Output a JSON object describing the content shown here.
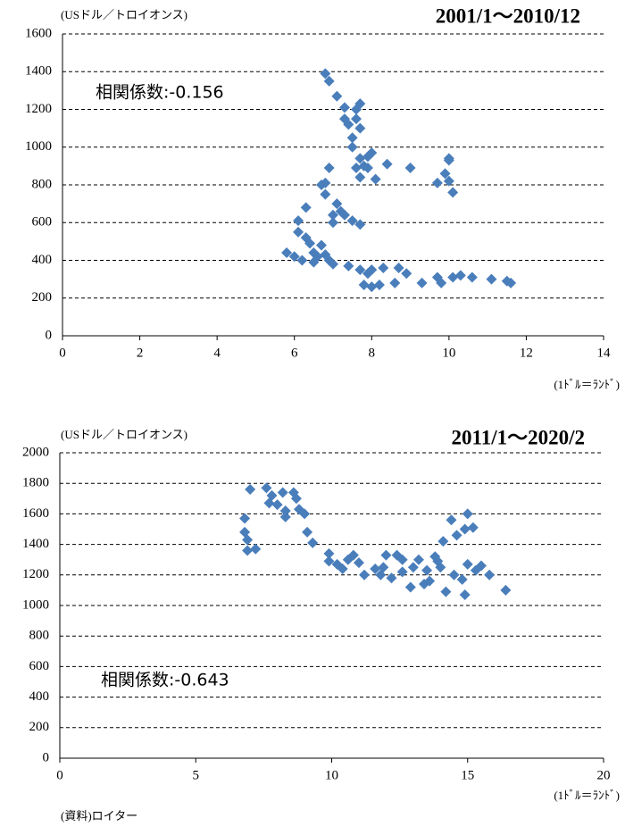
{
  "chart_data": [
    {
      "type": "scatter",
      "title": "2001/1〜2010/12",
      "y_label": "(USドル／トロイオンス)",
      "x_label": "(1ﾄﾞﾙ＝ﾗﾝﾄﾞ)",
      "annotation": "相関係数:-0.156",
      "color": "#4a7ebb",
      "grid": true,
      "xlim": [
        0,
        14
      ],
      "xticks": [
        0,
        2,
        4,
        6,
        8,
        10,
        12,
        14
      ],
      "ylim": [
        0,
        1600
      ],
      "yticks": [
        0,
        200,
        400,
        600,
        800,
        1000,
        1200,
        1400,
        1600
      ],
      "x": [
        6.8,
        6.9,
        7.1,
        7.3,
        7.3,
        7.4,
        7.5,
        7.6,
        7.7,
        7.6,
        7.7,
        7.5,
        7.7,
        7.6,
        7.7,
        7.8,
        7.9,
        8.0,
        7.9,
        8.1,
        8.4,
        9.0,
        9.7,
        9.9,
        10.0,
        10.0,
        10.0,
        10.1,
        6.9,
        6.7,
        6.8,
        6.8,
        7.0,
        7.1,
        7.2,
        7.3,
        7.0,
        7.5,
        7.7,
        6.3,
        6.1,
        6.1,
        6.3,
        6.4,
        6.5,
        6.7,
        6.8,
        6.6,
        6.9,
        7.0,
        5.8,
        6.0,
        6.2,
        6.5,
        7.4,
        7.7,
        7.9,
        8.0,
        7.8,
        8.0,
        8.2,
        8.3,
        8.7,
        8.9,
        9.3,
        9.7,
        9.8,
        10.1,
        10.3,
        10.6,
        11.1,
        11.5,
        11.6,
        8.6
      ],
      "values": [
        1390,
        1350,
        1270,
        1210,
        1150,
        1120,
        1050,
        1200,
        1230,
        1150,
        1100,
        1000,
        940,
        890,
        840,
        900,
        950,
        970,
        890,
        830,
        910,
        890,
        810,
        860,
        930,
        940,
        820,
        760,
        890,
        800,
        810,
        750,
        640,
        700,
        660,
        640,
        600,
        610,
        590,
        680,
        610,
        550,
        520,
        490,
        440,
        480,
        430,
        420,
        400,
        380,
        440,
        420,
        400,
        390,
        370,
        350,
        330,
        350,
        270,
        260,
        270,
        360,
        360,
        330,
        280,
        310,
        280,
        310,
        320,
        310,
        300,
        290,
        280,
        280
      ]
    },
    {
      "type": "scatter",
      "title": "2011/1〜2020/2",
      "y_label": "(USドル／トロイオンス)",
      "x_label": "(1ﾄﾞﾙ＝ﾗﾝﾄﾞ)",
      "annotation": "相関係数:-0.643",
      "color": "#4a7ebb",
      "grid": true,
      "xlim": [
        0,
        20
      ],
      "xticks": [
        0,
        5,
        10,
        15,
        20
      ],
      "ylim": [
        0,
        2000
      ],
      "yticks": [
        0,
        200,
        400,
        600,
        800,
        1000,
        1200,
        1400,
        1600,
        1800,
        2000
      ],
      "x": [
        6.8,
        6.8,
        6.9,
        6.9,
        7.2,
        7.0,
        7.6,
        7.8,
        7.7,
        8.0,
        8.2,
        8.3,
        8.3,
        8.6,
        8.7,
        8.8,
        9.0,
        9.1,
        9.3,
        9.9,
        9.9,
        10.2,
        10.4,
        10.6,
        10.8,
        11.0,
        11.2,
        11.6,
        11.8,
        12.0,
        12.2,
        12.4,
        12.6,
        12.9,
        13.0,
        13.2,
        13.5,
        13.6,
        13.8,
        14.0,
        14.1,
        14.2,
        14.4,
        14.6,
        14.9,
        15.0,
        15.2,
        15.0,
        15.3,
        15.5,
        15.8,
        14.5,
        14.8,
        14.9,
        16.4,
        13.4,
        12.6,
        13.9,
        11.9
      ],
      "values": [
        1570,
        1480,
        1430,
        1360,
        1370,
        1760,
        1770,
        1720,
        1670,
        1660,
        1740,
        1620,
        1580,
        1740,
        1700,
        1630,
        1600,
        1480,
        1410,
        1340,
        1290,
        1270,
        1240,
        1300,
        1330,
        1280,
        1200,
        1240,
        1200,
        1330,
        1180,
        1330,
        1300,
        1120,
        1250,
        1300,
        1230,
        1160,
        1320,
        1250,
        1420,
        1090,
        1560,
        1460,
        1500,
        1600,
        1510,
        1270,
        1230,
        1260,
        1200,
        1200,
        1170,
        1070,
        1100,
        1140,
        1220,
        1290,
        1250
      ]
    }
  ],
  "source": "(資料)ロイター"
}
